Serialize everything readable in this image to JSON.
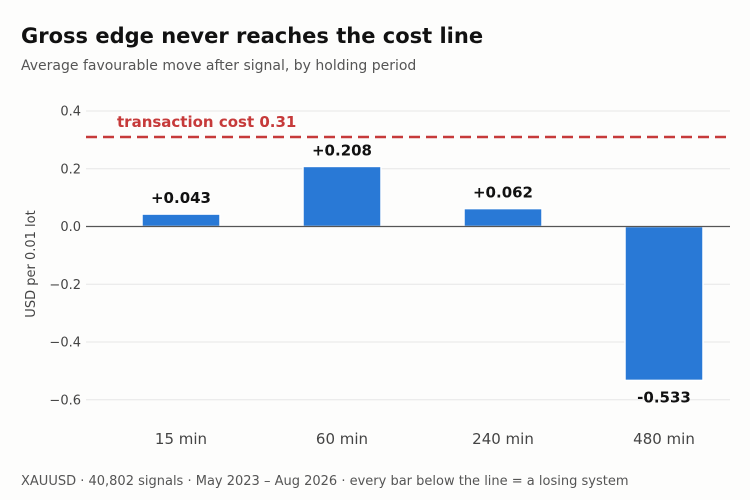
{
  "title": "Gross edge never reaches the cost line",
  "subtitle": "Average favourable move after signal, by holding period",
  "footer": "XAUUSD  ·  40,802 signals  ·  May 2023 – Aug 2026  ·  every bar below the line = a losing system",
  "colors": {
    "bar": "#2979d6",
    "cost_line": "#c63a3a",
    "zero_line": "#555555",
    "grid": "#e6e6e6"
  },
  "chart_data": {
    "type": "bar",
    "categories": [
      "15 min",
      "60 min",
      "240 min",
      "480 min"
    ],
    "values": [
      0.043,
      0.208,
      0.062,
      -0.533
    ],
    "value_labels": [
      "+0.043",
      "+0.208",
      "+0.062",
      "-0.533"
    ],
    "ylabel": "USD per 0.01 lot",
    "ylim": [
      -0.68,
      0.42
    ],
    "yticks": [
      0.4,
      0.2,
      0.0,
      -0.2,
      -0.4,
      -0.6
    ],
    "ytick_labels": [
      "0.4",
      "0.2",
      "0.0",
      "−0.2",
      "−0.4",
      "−0.6"
    ],
    "grid": true,
    "reference_line": {
      "value": 0.31,
      "label": "transaction cost  0.31",
      "style": "dashed"
    }
  }
}
